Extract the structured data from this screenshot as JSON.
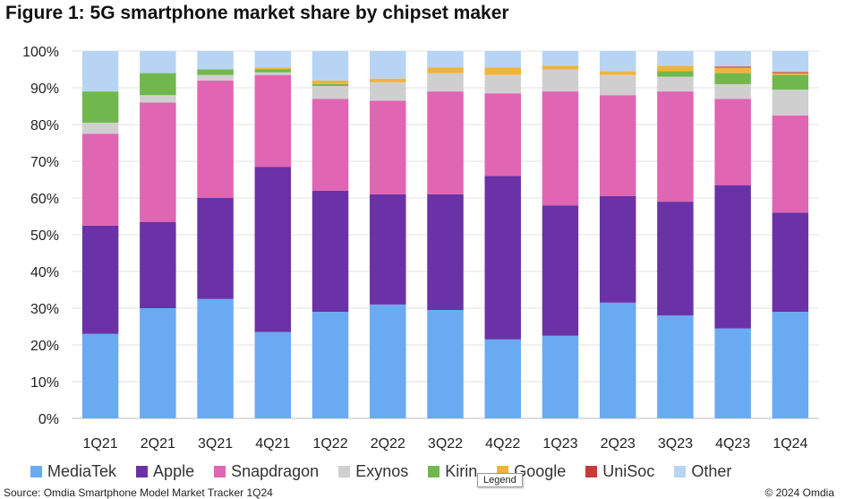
{
  "chart_data": {
    "type": "bar",
    "stacked": true,
    "title": "Figure 1: 5G smartphone market share by chipset maker",
    "xlabel": "",
    "ylabel": "",
    "ylim": [
      0,
      100
    ],
    "y_ticks": [
      "0%",
      "10%",
      "20%",
      "30%",
      "40%",
      "50%",
      "60%",
      "70%",
      "80%",
      "90%",
      "100%"
    ],
    "categories": [
      "1Q21",
      "2Q21",
      "3Q21",
      "4Q21",
      "1Q22",
      "2Q22",
      "3Q22",
      "4Q22",
      "1Q23",
      "2Q23",
      "3Q23",
      "4Q23",
      "1Q24"
    ],
    "series": [
      {
        "name": "MediaTek",
        "color": "#6aaaf2",
        "values": [
          23,
          30,
          32.5,
          23.5,
          29,
          31,
          29.5,
          21.5,
          22.5,
          31.5,
          28,
          24.5,
          29
        ]
      },
      {
        "name": "Apple",
        "color": "#6a32a6",
        "values": [
          29.5,
          23.5,
          27.5,
          45,
          33,
          30,
          31.5,
          44.5,
          35.5,
          29,
          31,
          39,
          27
        ]
      },
      {
        "name": "Snapdragon",
        "color": "#e065b3",
        "values": [
          25,
          32.5,
          32,
          25,
          25,
          25.5,
          28,
          22.5,
          31,
          27.5,
          30,
          23.5,
          26.5
        ]
      },
      {
        "name": "Exynos",
        "color": "#cfcfcf",
        "values": [
          3,
          2,
          1.5,
          0.7,
          3.5,
          5,
          5,
          5,
          6,
          5.5,
          4,
          4,
          7
        ]
      },
      {
        "name": "Kirin",
        "color": "#70b84e",
        "values": [
          8.5,
          6,
          1.5,
          0.8,
          0.5,
          0,
          0,
          0,
          0,
          0,
          1.5,
          3,
          4
        ]
      },
      {
        "name": "Google",
        "color": "#f0b43a",
        "values": [
          0,
          0,
          0,
          0.5,
          1,
          1,
          1.5,
          2,
          1,
          1,
          1.5,
          1.5,
          0.5
        ]
      },
      {
        "name": "UniSoc",
        "color": "#c83a3a",
        "values": [
          0,
          0,
          0,
          0,
          0,
          0,
          0,
          0,
          0,
          0,
          0,
          0.3,
          0.3
        ]
      },
      {
        "name": "Other",
        "color": "#b8d4f5",
        "values": [
          11,
          6,
          5,
          4.5,
          8,
          7.5,
          4.5,
          4.5,
          4,
          5.5,
          4,
          4.2,
          5.7
        ]
      }
    ]
  },
  "legend_tooltip": "Legend",
  "source_text": "Source: Omdia Smartphone Model Market Tracker 1Q24",
  "copyright_text": "© 2024 Omdia"
}
